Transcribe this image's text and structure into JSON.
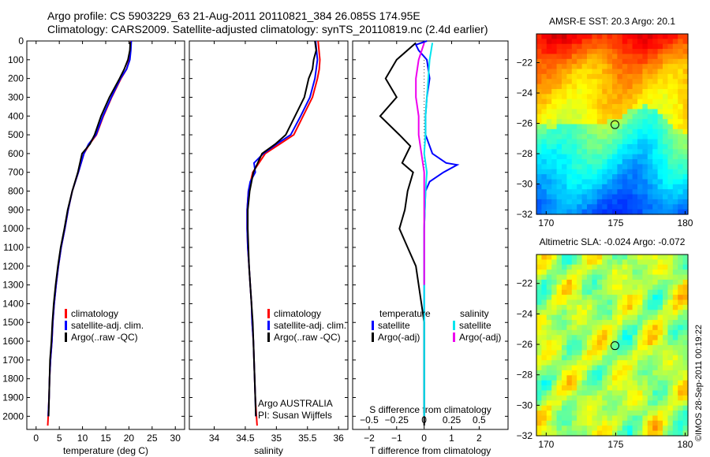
{
  "title_line1": "Argo profile: CS 5903229_63 21-Aug-2011 20110821_384 26.085S 174.95E",
  "title_line2": "Climatology: CARS2009. Satellite-adjusted climatology: synTS_20110819.nc (2.4d earlier)",
  "timestamp": "©IMOS 28-Sep-2011 00:19:22",
  "colors": {
    "red": "#ff0000",
    "blue": "#0000ff",
    "black": "#000000",
    "cyan": "#00e5ee",
    "magenta": "#ee00ee"
  },
  "chart_data": [
    {
      "type": "line",
      "xlabel": "temperature (deg C)",
      "ylabel": "",
      "xlim": [
        -2,
        32
      ],
      "ylim": [
        2070,
        0
      ],
      "xticks": [
        0,
        5,
        10,
        15,
        20,
        25,
        30
      ],
      "yticks": [
        0,
        100,
        200,
        300,
        400,
        500,
        600,
        700,
        800,
        900,
        1000,
        1100,
        1200,
        1300,
        1400,
        1500,
        1600,
        1700,
        1800,
        1900,
        2000
      ],
      "legend": {
        "entries": [
          "climatology",
          "satellite-adj. clim.",
          "Argo(..raw -QC)"
        ],
        "placement": "lower-middle"
      },
      "series": [
        {
          "name": "climatology",
          "color": "red",
          "points": [
            [
              20.4,
              0
            ],
            [
              20.3,
              50
            ],
            [
              20.1,
              100
            ],
            [
              19.5,
              150
            ],
            [
              18.3,
              200
            ],
            [
              16.3,
              300
            ],
            [
              14.5,
              400
            ],
            [
              13,
              500
            ],
            [
              11.5,
              550
            ],
            [
              10.3,
              600
            ],
            [
              9.1,
              700
            ],
            [
              7.8,
              800
            ],
            [
              6.9,
              900
            ],
            [
              6.2,
              1000
            ],
            [
              5.4,
              1100
            ],
            [
              4.8,
              1200
            ],
            [
              4.3,
              1300
            ],
            [
              3.9,
              1400
            ],
            [
              3.6,
              1500
            ],
            [
              3.4,
              1600
            ],
            [
              3.1,
              1700
            ],
            [
              2.9,
              1800
            ],
            [
              2.8,
              1900
            ],
            [
              2.6,
              2000
            ],
            [
              2.5,
              2050
            ]
          ]
        },
        {
          "name": "satellite-adj. clim.",
          "color": "blue",
          "points": [
            [
              20.5,
              0
            ],
            [
              20.4,
              50
            ],
            [
              20.2,
              100
            ],
            [
              19.5,
              150
            ],
            [
              18.2,
              200
            ],
            [
              16.2,
              300
            ],
            [
              14.4,
              400
            ],
            [
              12.9,
              500
            ],
            [
              11.3,
              550
            ],
            [
              10.3,
              600
            ],
            [
              9.1,
              700
            ],
            [
              7.8,
              800
            ],
            [
              6.9,
              900
            ],
            [
              6.2,
              1000
            ],
            [
              5.4,
              1100
            ],
            [
              4.8,
              1200
            ],
            [
              4.3,
              1300
            ],
            [
              3.9,
              1400
            ],
            [
              3.6,
              1500
            ],
            [
              3.4,
              1600
            ],
            [
              3.1,
              1700
            ],
            [
              2.9,
              1800
            ],
            [
              2.8,
              1900
            ],
            [
              2.6,
              2000
            ]
          ]
        },
        {
          "name": "Argo(..raw -QC)",
          "color": "black",
          "points": [
            [
              20.3,
              5
            ],
            [
              20.2,
              50
            ],
            [
              19.8,
              100
            ],
            [
              19,
              150
            ],
            [
              18,
              200
            ],
            [
              15.8,
              300
            ],
            [
              14,
              400
            ],
            [
              12.6,
              500
            ],
            [
              11.6,
              550
            ],
            [
              9.9,
              600
            ],
            [
              9,
              700
            ],
            [
              7.8,
              800
            ],
            [
              6.8,
              900
            ],
            [
              6.1,
              1000
            ],
            [
              5.3,
              1100
            ],
            [
              4.7,
              1200
            ],
            [
              4.2,
              1300
            ],
            [
              3.8,
              1400
            ],
            [
              3.5,
              1500
            ],
            [
              3.3,
              1600
            ],
            [
              3,
              1700
            ],
            [
              2.9,
              1800
            ],
            [
              2.8,
              1900
            ],
            [
              2.7,
              2000
            ]
          ]
        }
      ]
    },
    {
      "type": "line",
      "xlabel": "salinity",
      "ylabel": "",
      "xlim": [
        33.6,
        36.15
      ],
      "ylim": [
        2070,
        0
      ],
      "xticks": [
        34,
        34.5,
        35,
        35.5,
        36
      ],
      "legend": {
        "entries": [
          "climatology",
          "satellite-adj. clim.",
          "Argo(..raw -QC)"
        ],
        "placement": "lower-right"
      },
      "annotation": [
        "Argo AUSTRALIA",
        "PI: Susan Wijffels"
      ],
      "series": [
        {
          "name": "climatology",
          "color": "red",
          "points": [
            [
              35.67,
              0
            ],
            [
              35.7,
              100
            ],
            [
              35.69,
              150
            ],
            [
              35.66,
              200
            ],
            [
              35.58,
              300
            ],
            [
              35.43,
              400
            ],
            [
              35.28,
              500
            ],
            [
              35.05,
              550
            ],
            [
              34.82,
              600
            ],
            [
              34.62,
              700
            ],
            [
              34.55,
              800
            ],
            [
              34.53,
              900
            ],
            [
              34.53,
              1000
            ],
            [
              34.54,
              1100
            ],
            [
              34.56,
              1200
            ],
            [
              34.58,
              1300
            ],
            [
              34.6,
              1400
            ],
            [
              34.61,
              1500
            ],
            [
              34.63,
              1600
            ],
            [
              34.64,
              1700
            ],
            [
              34.65,
              1800
            ],
            [
              34.66,
              1900
            ],
            [
              34.68,
              2000
            ],
            [
              34.69,
              2050
            ]
          ]
        },
        {
          "name": "satellite-adj. clim.",
          "color": "blue",
          "points": [
            [
              35.63,
              0
            ],
            [
              35.66,
              100
            ],
            [
              35.64,
              150
            ],
            [
              35.62,
              200
            ],
            [
              35.54,
              300
            ],
            [
              35.39,
              400
            ],
            [
              35.23,
              500
            ],
            [
              35,
              550
            ],
            [
              34.79,
              600
            ],
            [
              34.64,
              650
            ],
            [
              34.66,
              700
            ],
            [
              34.58,
              750
            ],
            [
              34.55,
              800
            ],
            [
              34.53,
              900
            ],
            [
              34.53,
              1000
            ],
            [
              34.54,
              1100
            ],
            [
              34.56,
              1200
            ],
            [
              34.58,
              1300
            ],
            [
              34.6,
              1400
            ],
            [
              34.61,
              1500
            ],
            [
              34.63,
              1600
            ],
            [
              34.64,
              1700
            ],
            [
              34.65,
              1800
            ],
            [
              34.66,
              1900
            ],
            [
              34.67,
              2000
            ]
          ]
        },
        {
          "name": "Argo(..raw -QC)",
          "color": "black",
          "points": [
            [
              35.62,
              0
            ],
            [
              35.64,
              50
            ],
            [
              35.6,
              100
            ],
            [
              35.58,
              150
            ],
            [
              35.52,
              200
            ],
            [
              35.45,
              300
            ],
            [
              35.3,
              400
            ],
            [
              35.15,
              500
            ],
            [
              34.98,
              550
            ],
            [
              34.77,
              600
            ],
            [
              34.63,
              700
            ],
            [
              34.57,
              800
            ],
            [
              34.54,
              900
            ],
            [
              34.54,
              1000
            ],
            [
              34.55,
              1100
            ],
            [
              34.56,
              1200
            ],
            [
              34.58,
              1300
            ],
            [
              34.6,
              1400
            ],
            [
              34.62,
              1500
            ],
            [
              34.63,
              1600
            ],
            [
              34.64,
              1700
            ],
            [
              34.65,
              1800
            ],
            [
              34.66,
              1900
            ],
            [
              34.67,
              2000
            ]
          ]
        }
      ]
    },
    {
      "type": "line",
      "xlabel": "T difference from climatology",
      "ylabel": "",
      "xlabel_top": "S difference from climatology",
      "xlim": [
        -2.6,
        3.05
      ],
      "ylim": [
        2070,
        0
      ],
      "xticks": [
        -2,
        -1,
        0,
        1,
        2
      ],
      "s_xticks": [
        -0.5,
        -0.25,
        0,
        0.25,
        0.5
      ],
      "legend": {
        "groups": [
          {
            "heading": "temperature",
            "entries": [
              "satellite",
              "Argo(-adj)"
            ]
          },
          {
            "heading": "salinity",
            "entries": [
              "satellite",
              "Argo(-adj)"
            ]
          }
        ],
        "placement": "lower-middle"
      },
      "series": [
        {
          "name": "temperature satellite",
          "color": "blue",
          "points": [
            [
              0.1,
              0
            ],
            [
              -0.3,
              20
            ],
            [
              -0.2,
              50
            ],
            [
              0.1,
              100
            ],
            [
              0.2,
              200
            ],
            [
              0.1,
              300
            ],
            [
              0.05,
              400
            ],
            [
              0.05,
              500
            ],
            [
              0.3,
              600
            ],
            [
              0.8,
              650
            ],
            [
              1.2,
              660
            ],
            [
              0.7,
              700
            ],
            [
              0.2,
              750
            ],
            [
              0.05,
              800
            ],
            [
              0,
              1000
            ],
            [
              0,
              1500
            ],
            [
              0,
              2000
            ]
          ]
        },
        {
          "name": "temperature Argo(-adj)",
          "color": "black",
          "points": [
            [
              -0.3,
              10
            ],
            [
              -1,
              100
            ],
            [
              -1.4,
              200
            ],
            [
              -1,
              300
            ],
            [
              -1.6,
              400
            ],
            [
              -0.9,
              500
            ],
            [
              -0.5,
              560
            ],
            [
              -0.8,
              650
            ],
            [
              -0.4,
              700
            ],
            [
              -0.6,
              800
            ],
            [
              -0.7,
              900
            ],
            [
              -0.9,
              1000
            ],
            [
              -0.6,
              1100
            ],
            [
              -0.3,
              1200
            ],
            [
              -0.2,
              1300
            ],
            [
              -0.1,
              1400
            ],
            [
              0,
              1500
            ],
            [
              0,
              1700
            ],
            [
              0,
              1900
            ],
            [
              0,
              2050
            ]
          ]
        },
        {
          "name": "salinity satellite",
          "color": "cyan",
          "points": [
            [
              0.3,
              10
            ],
            [
              0.2,
              100
            ],
            [
              0.15,
              200
            ],
            [
              0.1,
              300
            ],
            [
              0.05,
              400
            ],
            [
              0.05,
              500
            ],
            [
              0,
              600
            ],
            [
              0.1,
              700
            ],
            [
              0.05,
              800
            ],
            [
              0,
              1000
            ],
            [
              0,
              1500
            ],
            [
              0,
              2000
            ]
          ]
        },
        {
          "name": "salinity Argo(-adj)",
          "color": "magenta",
          "points": [
            [
              0,
              10
            ],
            [
              -0.2,
              100
            ],
            [
              -0.3,
              200
            ],
            [
              -0.3,
              300
            ],
            [
              -0.2,
              400
            ],
            [
              -0.2,
              500
            ],
            [
              -0.1,
              600
            ],
            [
              0,
              700
            ],
            [
              0,
              800
            ],
            [
              0,
              1000
            ],
            [
              0,
              1200
            ],
            [
              0,
              1300
            ]
          ]
        }
      ]
    },
    {
      "type": "heatmap",
      "title": "AMSR-E SST: 20.3  Argo: 20.1",
      "xlim": [
        169.3,
        180.2
      ],
      "ylim": [
        -32,
        -20.1
      ],
      "xticks": [
        170,
        175,
        180
      ],
      "yticks": [
        -22,
        -24,
        -26,
        -28,
        -30,
        -32
      ],
      "marker": {
        "x": 174.95,
        "y": -26.085
      },
      "colormap": "jet"
    },
    {
      "type": "heatmap",
      "title": "Altimetric SLA: -0.024  Argo: -0.072",
      "xlim": [
        169.3,
        180.2
      ],
      "ylim": [
        -32,
        -20.1
      ],
      "xticks": [
        170,
        175,
        180
      ],
      "yticks": [
        -22,
        -24,
        -26,
        -28,
        -30,
        -32
      ],
      "marker": {
        "x": 174.95,
        "y": -26.085
      },
      "colormap": "jet"
    }
  ]
}
